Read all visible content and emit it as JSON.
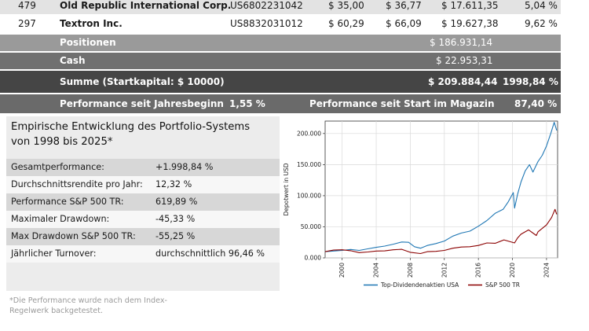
{
  "table": {
    "rows": [
      {
        "no": "479",
        "name": "Old Republic International Corp.",
        "isin": "US6802231042",
        "buy": "$ 35,00",
        "price": "$ 36,77",
        "value": "$ 17.611,35",
        "pct": "5,04 %"
      },
      {
        "no": "297",
        "name": "Textron Inc.",
        "isin": "US8832031012",
        "buy": "$ 60,29",
        "price": "$ 66,09",
        "value": "$ 19.627,38",
        "pct": "9,62 %"
      }
    ],
    "positionen_label": "Positionen",
    "positionen_value": "$ 186.931,14",
    "cash_label": "Cash",
    "cash_value": "$ 22.953,31",
    "summe_label": "Summe (Startkapital: $ 10000)",
    "summe_value": "$ 209.884,44",
    "summe_pct": "1998,84 %",
    "perf_year_label": "Performance seit Jahresbeginn",
    "perf_year_value": "1,55 %",
    "perf_start_label": "Performance seit Start im Magazin",
    "perf_start_value": "87,40 %"
  },
  "stats": {
    "title_line1": "Empirische Entwicklung des Portfolio-Systems",
    "title_line2": "von 1998 bis 2025*",
    "rows": [
      {
        "label": "Gesamtperformance:",
        "value": "+1.998,84 %"
      },
      {
        "label": "Durchschnittsrendite pro Jahr:",
        "value": "12,32 %"
      },
      {
        "label": "Performance S&P 500 TR:",
        "value": "619,89 %"
      },
      {
        "label": "Maximaler Drawdown:",
        "value": "-45,33 %"
      },
      {
        "label": "Max Drawdown S&P 500 TR:",
        "value": "-55,25 %"
      },
      {
        "label": "Jährlicher Turnover:",
        "value": "durchschnittlich 96,46 %"
      }
    ],
    "footnote_line1": "*Die Performance wurde nach dem Index-",
    "footnote_line2": "Regelwerk backgetestet."
  },
  "chart_data": {
    "type": "line",
    "ylabel": "Depotwert in USD",
    "xlabel": "",
    "xlim": [
      1998,
      2025.3
    ],
    "ylim": [
      0,
      220000
    ],
    "x_ticks": [
      2000,
      2004,
      2008,
      2012,
      2016,
      2020,
      2024
    ],
    "x_tick_labels": [
      "2000",
      "2004",
      "2008",
      "2012",
      "2016",
      "2020",
      "2024"
    ],
    "y_ticks": [
      0,
      50000,
      100000,
      150000,
      200000
    ],
    "y_tick_labels": [
      "0.000",
      "50.000",
      "100.000",
      "150.000",
      "200.000"
    ],
    "grid": true,
    "legend": "bottom",
    "colors": {
      "portfolio": "#1f77b4",
      "sp500": "#8b0000"
    },
    "series": [
      {
        "name": "Top-Dividendenaktien USA",
        "x": [
          1998,
          1999,
          2000,
          2001,
          2002,
          2003,
          2004,
          2005,
          2006,
          2007,
          2007.8,
          2008.5,
          2009.2,
          2010,
          2011,
          2012,
          2013,
          2014,
          2015,
          2016,
          2017,
          2018,
          2018.9,
          2019.5,
          2020.1,
          2020.25,
          2020.6,
          2021,
          2021.5,
          2022,
          2022.4,
          2023,
          2023.5,
          2024,
          2024.5,
          2024.9,
          2025.2
        ],
        "values": [
          10000,
          11000,
          12000,
          13500,
          12000,
          14500,
          17000,
          19000,
          22000,
          25500,
          25000,
          18000,
          15500,
          20000,
          23000,
          27000,
          35000,
          40000,
          43000,
          51000,
          60000,
          72000,
          78000,
          90000,
          105000,
          80000,
          102000,
          122000,
          140000,
          150000,
          138000,
          155000,
          165000,
          180000,
          200000,
          218000,
          205000
        ]
      },
      {
        "name": "S&P 500 TR",
        "x": [
          1998,
          1999,
          2000,
          2001,
          2002,
          2003,
          2004,
          2005,
          2006,
          2007,
          2008,
          2009.2,
          2010,
          2011,
          2012,
          2013,
          2014,
          2015,
          2016,
          2017,
          2018,
          2019,
          2020.25,
          2020.6,
          2021,
          2021.9,
          2022.8,
          2023,
          2024,
          2024.6,
          2025,
          2025.2
        ],
        "values": [
          10000,
          12500,
          13000,
          11500,
          8500,
          9500,
          11000,
          11300,
          13000,
          13800,
          9000,
          7000,
          10000,
          10500,
          12000,
          15500,
          17500,
          18000,
          20000,
          24000,
          23500,
          29000,
          24000,
          32000,
          38000,
          45000,
          36000,
          42000,
          53000,
          65000,
          78000,
          70000
        ]
      }
    ]
  }
}
